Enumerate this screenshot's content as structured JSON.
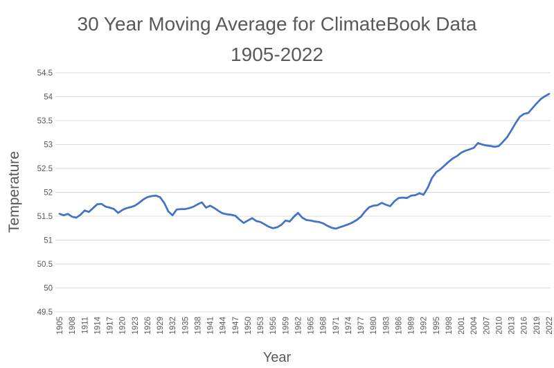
{
  "chart_data": {
    "type": "line",
    "title": "30 Year Moving Average for ClimateBook Data",
    "subtitle": "1905-2022",
    "xlabel": "Year",
    "ylabel": "Temperature",
    "ylim": [
      49.5,
      54.5
    ],
    "y_tick_step": 0.5,
    "x_tick_step": 3,
    "grid": true,
    "legend": "none",
    "line_color": "#4472C4",
    "text_color": "#595959",
    "grid_color": "#D9D9D9",
    "years": [
      1905,
      1906,
      1907,
      1908,
      1909,
      1910,
      1911,
      1912,
      1913,
      1914,
      1915,
      1916,
      1917,
      1918,
      1919,
      1920,
      1921,
      1922,
      1923,
      1924,
      1925,
      1926,
      1927,
      1928,
      1929,
      1930,
      1931,
      1932,
      1933,
      1934,
      1935,
      1936,
      1937,
      1938,
      1939,
      1940,
      1941,
      1942,
      1943,
      1944,
      1945,
      1946,
      1947,
      1948,
      1949,
      1950,
      1951,
      1952,
      1953,
      1954,
      1955,
      1956,
      1957,
      1958,
      1959,
      1960,
      1961,
      1962,
      1963,
      1964,
      1965,
      1966,
      1967,
      1968,
      1969,
      1970,
      1971,
      1972,
      1973,
      1974,
      1975,
      1976,
      1977,
      1978,
      1979,
      1980,
      1981,
      1982,
      1983,
      1984,
      1985,
      1986,
      1987,
      1988,
      1989,
      1990,
      1991,
      1992,
      1993,
      1994,
      1995,
      1996,
      1997,
      1998,
      1999,
      2000,
      2001,
      2002,
      2003,
      2004,
      2005,
      2006,
      2007,
      2008,
      2009,
      2010,
      2011,
      2012,
      2013,
      2014,
      2015,
      2016,
      2017,
      2018,
      2019,
      2020,
      2021,
      2022
    ],
    "values": [
      51.55,
      51.52,
      51.55,
      51.49,
      51.47,
      51.53,
      51.62,
      51.59,
      51.67,
      51.75,
      51.76,
      51.7,
      51.68,
      51.65,
      51.57,
      51.63,
      51.67,
      51.69,
      51.72,
      51.78,
      51.85,
      51.9,
      51.92,
      51.93,
      51.9,
      51.78,
      51.6,
      51.52,
      51.64,
      51.65,
      51.65,
      51.67,
      51.7,
      51.75,
      51.79,
      51.68,
      51.72,
      51.67,
      51.61,
      51.56,
      51.54,
      51.53,
      51.51,
      51.43,
      51.36,
      51.41,
      51.46,
      51.4,
      51.38,
      51.33,
      51.28,
      51.25,
      51.27,
      51.32,
      51.41,
      51.39,
      51.49,
      51.57,
      51.47,
      51.42,
      51.41,
      51.39,
      51.38,
      51.35,
      51.3,
      51.26,
      51.24,
      51.27,
      51.3,
      51.33,
      51.37,
      51.42,
      51.49,
      51.6,
      51.69,
      51.72,
      51.73,
      51.78,
      51.74,
      51.71,
      51.81,
      51.88,
      51.89,
      51.88,
      51.93,
      51.94,
      51.98,
      51.95,
      52.1,
      52.3,
      52.42,
      52.48,
      52.56,
      52.64,
      52.71,
      52.76,
      52.83,
      52.87,
      52.9,
      52.93,
      53.03,
      53.0,
      52.98,
      52.97,
      52.95,
      52.97,
      53.06,
      53.16,
      53.3,
      53.45,
      53.58,
      53.64,
      53.66,
      53.76,
      53.86,
      53.95,
      54.01,
      54.06
    ]
  }
}
